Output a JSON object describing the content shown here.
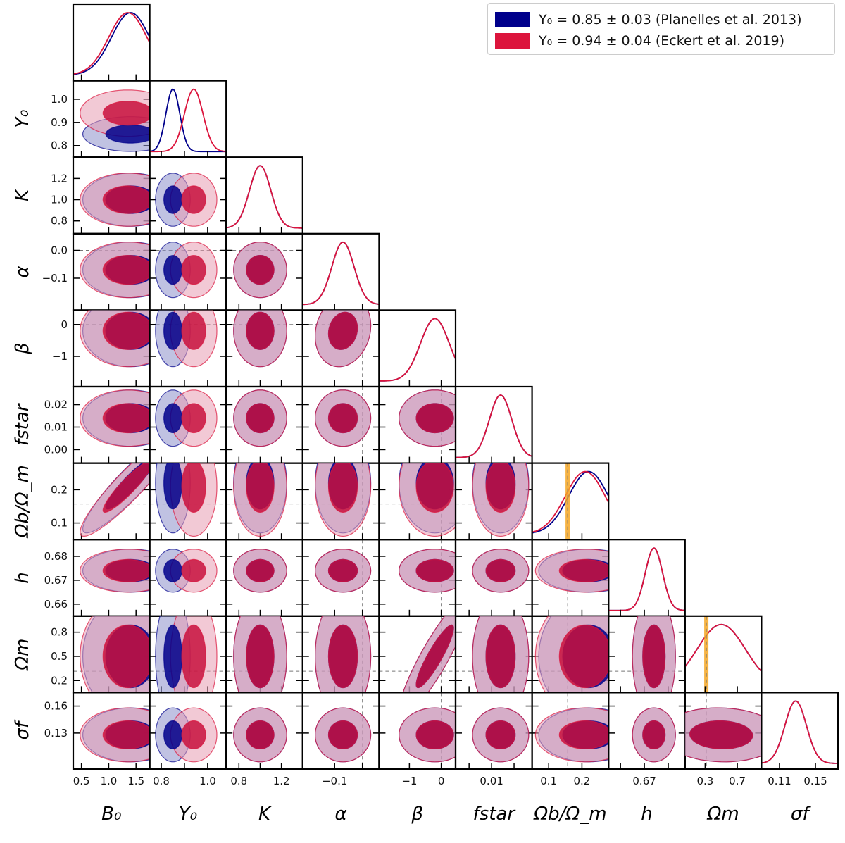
{
  "chart_data": {
    "type": "corner",
    "params": [
      {
        "name": "B0",
        "label": "B₀",
        "range": [
          0.35,
          1.75
        ],
        "ticks": [
          0.5,
          1.0,
          1.5
        ],
        "tick_labels": [
          "0.5",
          "1.0",
          "1.5"
        ]
      },
      {
        "name": "Y0",
        "label": "Y₀",
        "range": [
          0.75,
          1.08
        ],
        "ticks": [
          0.8,
          0.9,
          1.0
        ],
        "tick_labels": [
          "0.8",
          "0.9",
          "1.0"
        ],
        "xtick_labels": [
          "0.8",
          "",
          "1.0"
        ]
      },
      {
        "name": "K",
        "label": "K",
        "range": [
          0.68,
          1.4
        ],
        "ticks": [
          0.8,
          1.0,
          1.2
        ],
        "tick_labels": [
          "0.8",
          "1.0",
          "1.2"
        ],
        "xtick_labels": [
          "0.8",
          "",
          "1.2"
        ]
      },
      {
        "name": "alpha",
        "label": "α",
        "range": [
          -0.215,
          0.06
        ],
        "ticks": [
          -0.1,
          0.0
        ],
        "tick_labels": [
          "−0.1",
          "0.0"
        ],
        "xtick_labels": [
          "−0.1",
          ""
        ]
      },
      {
        "name": "beta",
        "label": "β",
        "range": [
          -1.95,
          0.45
        ],
        "ticks": [
          -1,
          0
        ],
        "tick_labels": [
          "−1",
          "0"
        ]
      },
      {
        "name": "fstar",
        "label": "f_star",
        "range": [
          -0.006,
          0.028
        ],
        "ticks": [
          0.0,
          0.01,
          0.02
        ],
        "tick_labels": [
          "0.00",
          "0.01",
          "0.02"
        ],
        "xtick_labels": [
          "",
          "0.01",
          ""
        ]
      },
      {
        "name": "Omega_b/Omega_m",
        "label": "Ω_b/Ω_m",
        "range": [
          0.05,
          0.28
        ],
        "ticks": [
          0.1,
          0.2
        ],
        "tick_labels": [
          "0.1",
          "0.2"
        ]
      },
      {
        "name": "h",
        "label": "h",
        "range": [
          0.655,
          0.687
        ],
        "ticks": [
          0.66,
          0.67,
          0.68
        ],
        "tick_labels": [
          "0.66",
          "0.67",
          "0.68"
        ],
        "xtick_labels": [
          "",
          "0.67",
          ""
        ]
      },
      {
        "name": "Omega_m",
        "label": "Ω_m",
        "range": [
          0.05,
          1.0
        ],
        "ticks": [
          0.2,
          0.5,
          0.8
        ],
        "tick_labels": [
          "0.2",
          "0.5",
          "0.8"
        ],
        "xtick_values": [
          0.3,
          0.7
        ],
        "xtick_texts": [
          "0.3",
          "0.7"
        ]
      },
      {
        "name": "sigma_f",
        "label": "σ_f",
        "range": [
          0.09,
          0.175
        ],
        "ticks": [
          0.13,
          0.16
        ],
        "tick_labels": [
          "0.13",
          "0.16"
        ],
        "xtick_values": [
          0.11,
          0.15
        ],
        "xtick_texts": [
          "0.11",
          "0.15"
        ]
      }
    ],
    "series": [
      {
        "name": "Planelles",
        "legend": "Y₀ = 0.85 ± 0.03 (Planelles et al. 2013)",
        "line_color": "#00008b",
        "fill_outer": "#8d8fcb",
        "fill_inner": "#00008b",
        "means": [
          1.4,
          0.85,
          1.0,
          -0.07,
          -0.2,
          0.014,
          0.22,
          0.674,
          0.5,
          0.128
        ],
        "sigmas": [
          0.35,
          0.03,
          0.1,
          0.04,
          0.45,
          0.005,
          0.06,
          0.0036,
          0.3,
          0.012
        ]
      },
      {
        "name": "Eckert",
        "legend": "Y₀ = 0.94 ± 0.04 (Eckert et al. 2019)",
        "line_color": "#dc143c",
        "fill_outer": "#e89cb3",
        "fill_inner": "#c8103d",
        "means": [
          1.35,
          0.94,
          1.0,
          -0.07,
          -0.2,
          0.014,
          0.21,
          0.674,
          0.5,
          0.128
        ],
        "sigmas": [
          0.35,
          0.04,
          0.1,
          0.04,
          0.45,
          0.005,
          0.06,
          0.0036,
          0.3,
          0.012
        ]
      }
    ],
    "reference_lines": {
      "alpha": 0.0,
      "beta": 0.0,
      "Omega_b/Omega_m": 0.157,
      "Omega_m": 0.315
    },
    "priors": {
      "Omega_b/Omega_m": 0.157,
      "Omega_m": 0.315
    }
  }
}
